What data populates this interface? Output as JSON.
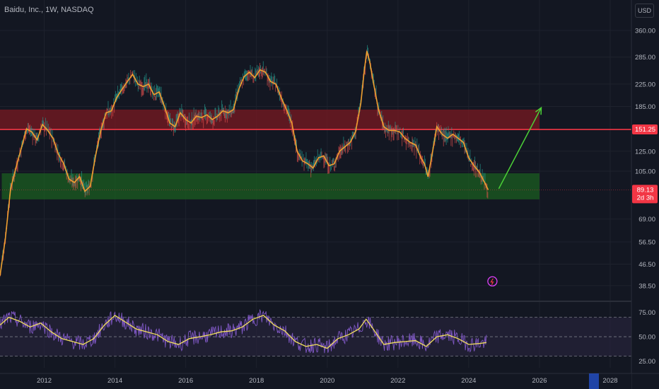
{
  "header": {
    "title": "Baidu, Inc., 1W, NASDAQ",
    "currency": "USD"
  },
  "colors": {
    "background": "#131722",
    "grid": "#1e222d",
    "axis_text": "#b2b5be",
    "resistance_zone": "#7a1a22",
    "support_zone": "#1b5e20",
    "resistance_line": "#f23645",
    "support_line": "#f23645",
    "ma": "#f0a030",
    "price_up": "#26a69a",
    "price_down": "#ef5350",
    "arrow": "#4cd137",
    "rsi": "#7e57c2",
    "rsi_ma": "#f2e05d",
    "rsi_band": "#2a2540"
  },
  "chart_data": [
    {
      "type": "line",
      "scale": "log",
      "y_ticks": [
        360,
        285,
        225,
        185,
        125,
        105,
        69,
        56.5,
        46.5,
        38.5
      ],
      "y_tick_labels": [
        "360.00",
        "285.00",
        "225.00",
        "185.00",
        "125.00",
        "105.00",
        "69.00",
        "56.50",
        "46.50",
        "38.50"
      ],
      "x_ticks": [
        2012,
        2014,
        2016,
        2018,
        2020,
        2022,
        2024,
        2026,
        2028
      ],
      "ylim": [
        34,
        400
      ],
      "xlim": [
        2010.75,
        2028.6
      ],
      "series": [
        {
          "x": [
            2010.75,
            2010.9,
            2011.05,
            2011.2,
            2011.35,
            2011.5,
            2011.65,
            2011.8,
            2011.95,
            2012.1,
            2012.25,
            2012.4,
            2012.55,
            2012.7,
            2012.85,
            2013.0,
            2013.15,
            2013.3,
            2013.45,
            2013.6,
            2013.75,
            2013.9,
            2014.05,
            2014.2,
            2014.35,
            2014.5,
            2014.65,
            2014.8,
            2014.95,
            2015.1,
            2015.25,
            2015.4,
            2015.55,
            2015.7,
            2015.85,
            2016.0,
            2016.15,
            2016.3,
            2016.45,
            2016.6,
            2016.75,
            2016.9,
            2017.05,
            2017.2,
            2017.35,
            2017.5,
            2017.65,
            2017.8,
            2017.95,
            2018.1,
            2018.25,
            2018.4,
            2018.55,
            2018.7,
            2018.85,
            2019.0,
            2019.15,
            2019.3,
            2019.45,
            2019.6,
            2019.75,
            2019.9,
            2020.05,
            2020.2,
            2020.35,
            2020.5,
            2020.65,
            2020.8,
            2020.95,
            2021.05,
            2021.12,
            2021.2,
            2021.3,
            2021.45,
            2021.6,
            2021.75,
            2021.9,
            2022.05,
            2022.2,
            2022.35,
            2022.5,
            2022.65,
            2022.75,
            2022.85,
            2022.95,
            2023.1,
            2023.25,
            2023.4,
            2023.55,
            2023.7,
            2023.85,
            2024.0,
            2024.15,
            2024.3,
            2024.45,
            2024.55
          ],
          "values": [
            42,
            58,
            90,
            108,
            128,
            152,
            148,
            138,
            158,
            150,
            140,
            122,
            112,
            98,
            95,
            100,
            88,
            92,
            120,
            150,
            175,
            178,
            200,
            215,
            230,
            245,
            225,
            220,
            225,
            205,
            210,
            185,
            160,
            155,
            175,
            165,
            160,
            170,
            168,
            172,
            165,
            170,
            178,
            175,
            180,
            215,
            240,
            250,
            238,
            255,
            250,
            230,
            225,
            200,
            180,
            160,
            125,
            115,
            112,
            108,
            118,
            120,
            110,
            112,
            125,
            130,
            135,
            148,
            190,
            255,
            300,
            275,
            230,
            180,
            155,
            150,
            150,
            148,
            140,
            135,
            132,
            118,
            112,
            100,
            118,
            155,
            145,
            140,
            145,
            140,
            135,
            118,
            110,
            104,
            95,
            89.13
          ],
          "name": ""
        }
      ],
      "zones": [
        {
          "label": "resistance",
          "from": 151.25,
          "to": 180,
          "x_start": 2010.75,
          "x_end": 2026.0
        },
        {
          "label": "support",
          "from": 82,
          "to": 103,
          "x_start": 2010.8,
          "x_end": 2026.0
        }
      ],
      "lines": [
        {
          "value": 151.25,
          "label": "151.25"
        }
      ],
      "last_price": {
        "value": 89.13,
        "label": "89.13",
        "sub_label": "2d 3h"
      },
      "arrow": {
        "x1": 2024.85,
        "y1": 90,
        "x2": 2026.05,
        "y2": 183
      },
      "event_marker": {
        "x": 2024.55,
        "y": 40
      }
    },
    {
      "type": "line",
      "title": "",
      "y_ticks": [
        75,
        50,
        25
      ],
      "y_tick_labels": [
        "75.00",
        "50.00",
        "25.00"
      ],
      "ylim": [
        18,
        85
      ],
      "band": [
        30,
        70
      ],
      "series": [
        {
          "name": "",
          "x": [
            2010.75,
            2011.0,
            2011.3,
            2011.6,
            2011.9,
            2012.2,
            2012.5,
            2012.8,
            2013.1,
            2013.4,
            2013.7,
            2014.0,
            2014.3,
            2014.6,
            2014.9,
            2015.2,
            2015.5,
            2015.8,
            2016.1,
            2016.4,
            2016.7,
            2017.0,
            2017.3,
            2017.6,
            2017.9,
            2018.2,
            2018.5,
            2018.8,
            2019.1,
            2019.4,
            2019.7,
            2020.0,
            2020.3,
            2020.6,
            2020.9,
            2021.1,
            2021.3,
            2021.6,
            2021.9,
            2022.2,
            2022.5,
            2022.8,
            2023.1,
            2023.4,
            2023.7,
            2024.0,
            2024.3,
            2024.5
          ],
          "values": [
            62,
            70,
            66,
            60,
            64,
            55,
            48,
            45,
            42,
            48,
            62,
            72,
            65,
            58,
            55,
            52,
            45,
            42,
            48,
            50,
            52,
            55,
            56,
            60,
            68,
            72,
            62,
            56,
            45,
            40,
            42,
            38,
            48,
            52,
            58,
            68,
            58,
            42,
            44,
            45,
            46,
            40,
            50,
            52,
            48,
            42,
            43,
            44
          ]
        }
      ]
    }
  ]
}
